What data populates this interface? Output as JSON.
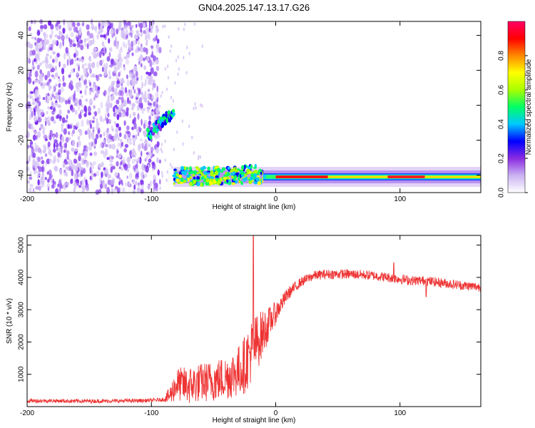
{
  "title": "GN04.2025.147.13.17.G26",
  "chart_data": [
    {
      "type": "heatmap",
      "xlabel": "Height of straight line (km)",
      "ylabel": "Frequency (Hz)",
      "xlim": [
        -200,
        165
      ],
      "ylim": [
        -50,
        48
      ],
      "xticks": [
        -200,
        -100,
        0,
        100
      ],
      "yticks": [
        -40,
        -20,
        0,
        20,
        40
      ],
      "colorbar": {
        "label": "Normalized spectral amplitude",
        "range": [
          0,
          1
        ],
        "ticks": [
          0.0,
          0.2,
          0.4,
          0.6,
          0.8
        ],
        "tick_labels": [
          "0.0",
          "0.2",
          "0.4",
          "0.6",
          "0.8"
        ],
        "colors": [
          "#ffffff",
          "#cbb2f2",
          "#8a2be2",
          "#0000ff",
          "#00c8ff",
          "#00ff66",
          "#a8ff00",
          "#ffff00",
          "#ff8800",
          "#ff0000",
          "#ff0066"
        ]
      },
      "features": [
        {
          "name": "noise",
          "x_range": [
            -200,
            -93
          ],
          "freq_range": [
            -50,
            48
          ],
          "amplitude": 0.12
        },
        {
          "name": "early-signal",
          "x_range": [
            -103,
            -82
          ],
          "freq_start": -17,
          "freq_end": -4,
          "amplitude": 0.35
        },
        {
          "name": "carrier",
          "x_range": [
            -82,
            165
          ],
          "freq": -41,
          "amplitude": 1.0
        }
      ]
    },
    {
      "type": "line",
      "xlabel": "Height of straight line (km)",
      "ylabel": "SNR (10 * v/v)",
      "xlim": [
        -200,
        165
      ],
      "ylim": [
        0,
        5300
      ],
      "xticks": [
        -200,
        -100,
        0,
        100
      ],
      "yticks": [
        1000,
        2000,
        3000,
        4000,
        5000
      ],
      "color": "#ee3333",
      "x": [
        -200,
        -180,
        -160,
        -140,
        -120,
        -100,
        -90,
        -85,
        -80,
        -70,
        -60,
        -50,
        -40,
        -30,
        -25,
        -20,
        -15,
        -10,
        -5,
        0,
        5,
        10,
        20,
        30,
        40,
        50,
        60,
        70,
        80,
        90,
        100,
        110,
        120,
        130,
        140,
        150,
        165
      ],
      "y": [
        180,
        180,
        170,
        170,
        180,
        190,
        220,
        350,
        700,
        650,
        750,
        800,
        900,
        1100,
        1300,
        1700,
        2000,
        2300,
        2600,
        2900,
        3200,
        3500,
        3850,
        4050,
        4100,
        4100,
        4100,
        4080,
        4050,
        4000,
        3950,
        3900,
        3900,
        3850,
        3800,
        3750,
        3700
      ],
      "noise": [
        60,
        60,
        60,
        60,
        60,
        60,
        60,
        300,
        500,
        600,
        600,
        650,
        700,
        800,
        900,
        1000,
        900,
        700,
        500,
        350,
        250,
        200,
        150,
        150,
        150,
        150,
        150,
        150,
        150,
        150,
        150,
        150,
        150,
        150,
        150,
        150,
        150
      ],
      "spikes": [
        {
          "x": -18,
          "y": 5300
        },
        {
          "x": 95,
          "y": 4450
        },
        {
          "x": 121,
          "y": 3400
        }
      ]
    }
  ]
}
